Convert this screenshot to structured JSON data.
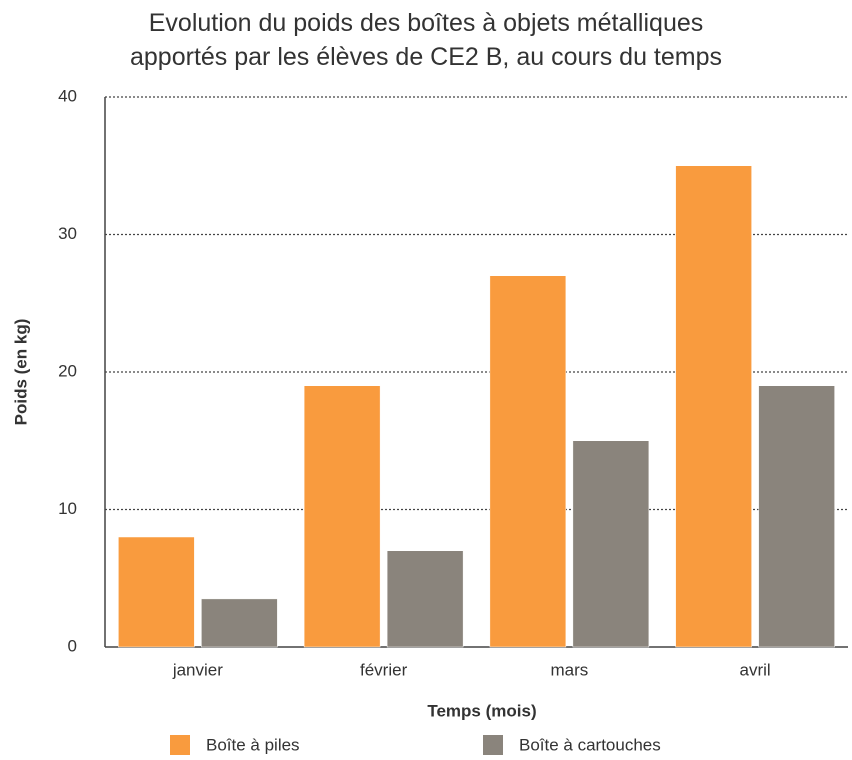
{
  "chart_data": {
    "type": "bar",
    "title": "Evolution du poids des boîtes à objets métalliques\napportés par les élèves de CE2 B, au cours du temps",
    "x_label": "Temps (mois)",
    "y_label": "Poids (en kg)",
    "categories": [
      "janvier",
      "février",
      "mars",
      "avril"
    ],
    "series": [
      {
        "name": "Boîte à piles",
        "color": "#f99b3e",
        "values": [
          8,
          19,
          27,
          35
        ]
      },
      {
        "name": "Boîte à cartouches",
        "color": "#8a847c",
        "values": [
          3.5,
          7,
          15,
          19
        ]
      }
    ],
    "ylim": [
      0,
      40
    ],
    "yticks": [
      0,
      10,
      20,
      30,
      40
    ],
    "grid": true,
    "legend": "bottom"
  }
}
